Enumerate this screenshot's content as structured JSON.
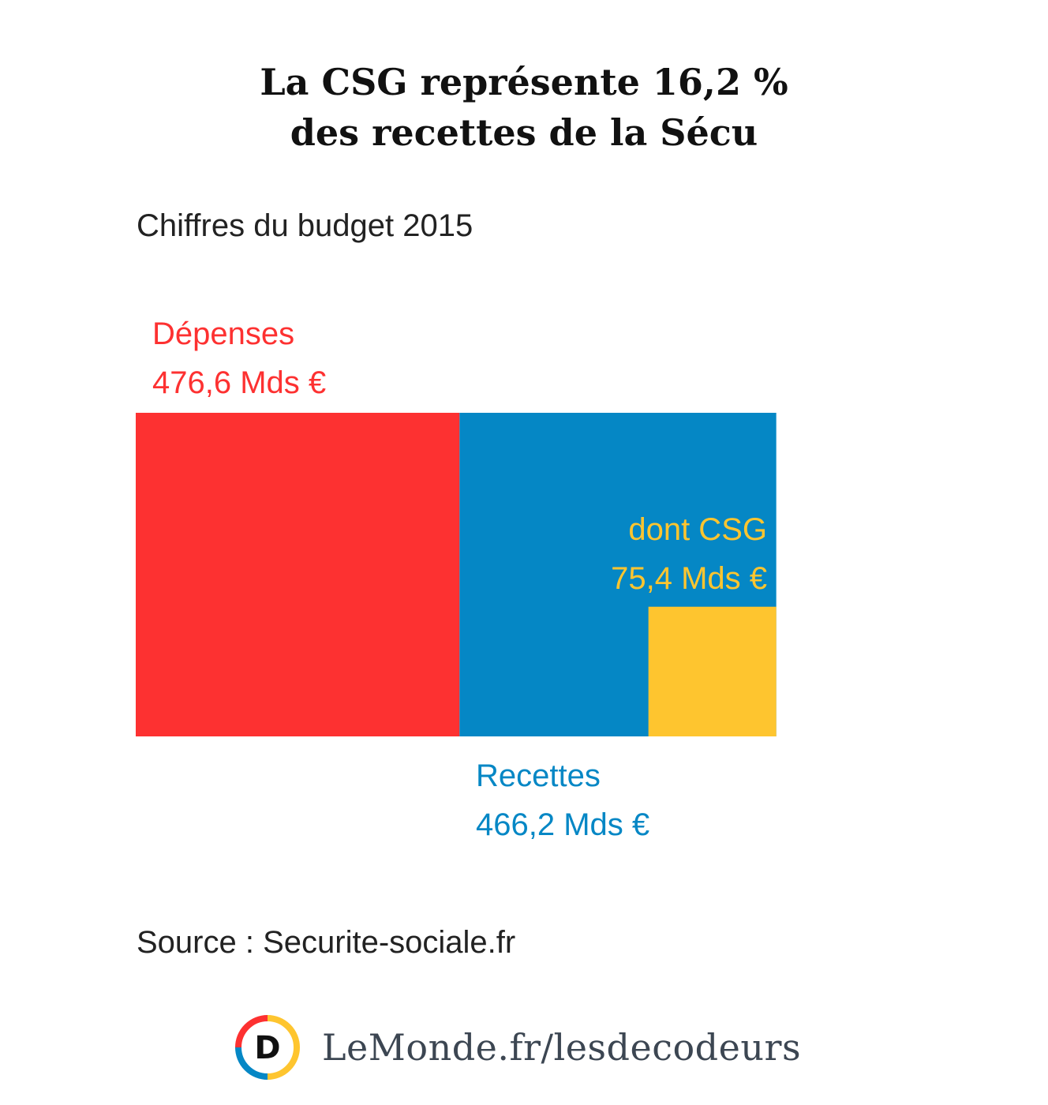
{
  "chart_data": {
    "type": "area",
    "title_lines": [
      "La CSG représente 16,2 %",
      "des recettes de la Sécu"
    ],
    "subtitle": "Chiffres du budget 2015",
    "unit": "Mds €",
    "series": [
      {
        "name": "Dépenses",
        "value": 476.6,
        "value_label": "476,6 Mds €",
        "color": "#fd3131"
      },
      {
        "name": "Recettes",
        "value": 466.2,
        "value_label": "466,2 Mds €",
        "color": "#0587c5"
      },
      {
        "name": "dont CSG",
        "value": 75.4,
        "value_label": "75,4 Mds €",
        "color": "#fec52f",
        "part_of": "Recettes"
      }
    ],
    "source": "Source : Securite-sociale.fr"
  },
  "colors": {
    "depenses": "#fd3131",
    "recettes": "#0587c5",
    "csg": "#fec52f",
    "text": "#222222"
  },
  "footer": {
    "logo_icon": "lemonde-decodeurs-logo-icon",
    "logo_letter": "D",
    "text": "LeMonde.fr/lesdecodeurs"
  }
}
